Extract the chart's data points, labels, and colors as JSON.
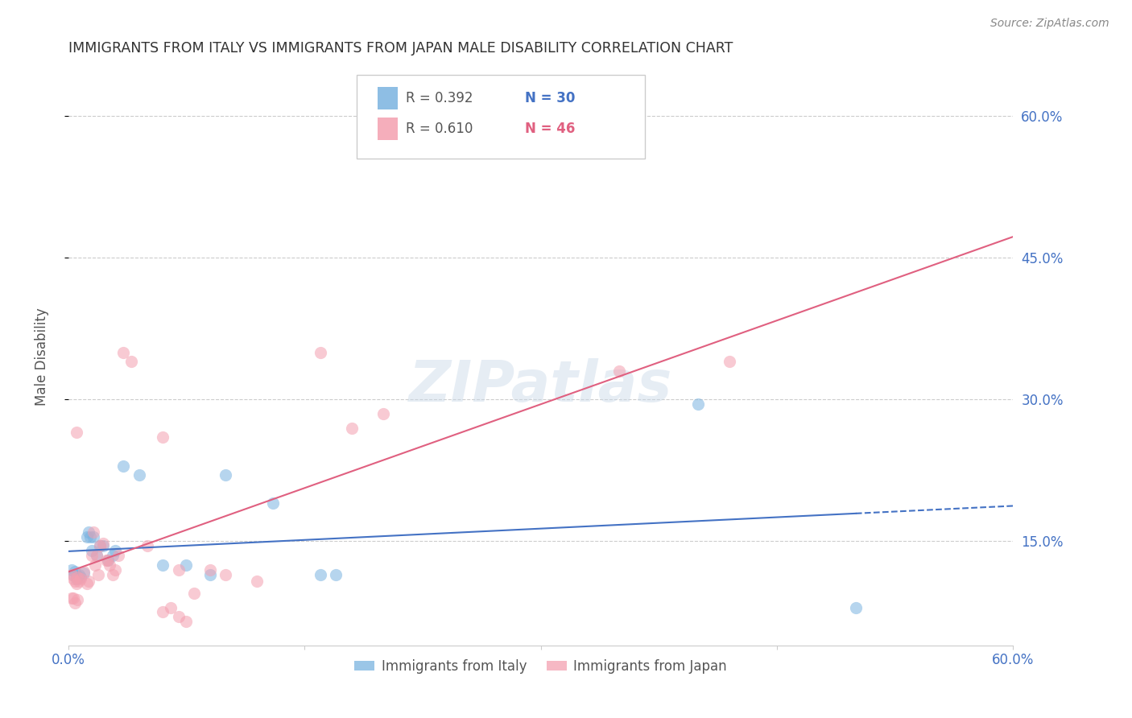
{
  "title": "IMMIGRANTS FROM ITALY VS IMMIGRANTS FROM JAPAN MALE DISABILITY CORRELATION CHART",
  "source": "Source: ZipAtlas.com",
  "ylabel": "Male Disability",
  "xlim": [
    0.0,
    0.6
  ],
  "ylim_plot": [
    0.04,
    0.65
  ],
  "xtick_vals": [
    0.0,
    0.15,
    0.3,
    0.45,
    0.6
  ],
  "xtick_labels": [
    "0.0%",
    "",
    "",
    "",
    "60.0%"
  ],
  "ytick_vals": [
    0.15,
    0.3,
    0.45,
    0.6
  ],
  "ytick_labels_right": [
    "15.0%",
    "30.0%",
    "45.0%",
    "60.0%"
  ],
  "title_color": "#333333",
  "source_color": "#888888",
  "axis_label_color": "#555555",
  "tick_label_color": "#4472c4",
  "grid_color": "#cccccc",
  "legend_r1": "R = 0.392",
  "legend_n1": "N = 30",
  "legend_r2": "R = 0.610",
  "legend_n2": "N = 46",
  "legend_n1_color": "#4472c4",
  "legend_n2_color": "#e06080",
  "legend_r_color": "#555555",
  "italy_color": "#7ab3e0",
  "japan_color": "#f4a0b0",
  "italy_line_color": "#4472c4",
  "japan_line_color": "#e06080",
  "watermark": "ZIPatlas",
  "italy_points": [
    [
      0.002,
      0.12
    ],
    [
      0.003,
      0.115
    ],
    [
      0.004,
      0.118
    ],
    [
      0.005,
      0.11
    ],
    [
      0.006,
      0.113
    ],
    [
      0.007,
      0.115
    ],
    [
      0.008,
      0.112
    ],
    [
      0.01,
      0.116
    ],
    [
      0.012,
      0.155
    ],
    [
      0.013,
      0.16
    ],
    [
      0.014,
      0.155
    ],
    [
      0.015,
      0.14
    ],
    [
      0.016,
      0.155
    ],
    [
      0.018,
      0.135
    ],
    [
      0.02,
      0.145
    ],
    [
      0.022,
      0.145
    ],
    [
      0.025,
      0.13
    ],
    [
      0.028,
      0.135
    ],
    [
      0.03,
      0.14
    ],
    [
      0.035,
      0.23
    ],
    [
      0.045,
      0.22
    ],
    [
      0.06,
      0.125
    ],
    [
      0.075,
      0.125
    ],
    [
      0.09,
      0.115
    ],
    [
      0.1,
      0.22
    ],
    [
      0.13,
      0.19
    ],
    [
      0.16,
      0.115
    ],
    [
      0.17,
      0.115
    ],
    [
      0.4,
      0.295
    ],
    [
      0.5,
      0.08
    ]
  ],
  "japan_points": [
    [
      0.002,
      0.115
    ],
    [
      0.003,
      0.11
    ],
    [
      0.004,
      0.108
    ],
    [
      0.005,
      0.105
    ],
    [
      0.006,
      0.112
    ],
    [
      0.007,
      0.108
    ],
    [
      0.008,
      0.11
    ],
    [
      0.01,
      0.118
    ],
    [
      0.012,
      0.105
    ],
    [
      0.013,
      0.108
    ],
    [
      0.015,
      0.135
    ],
    [
      0.016,
      0.16
    ],
    [
      0.017,
      0.125
    ],
    [
      0.018,
      0.135
    ],
    [
      0.019,
      0.115
    ],
    [
      0.02,
      0.145
    ],
    [
      0.022,
      0.148
    ],
    [
      0.024,
      0.13
    ],
    [
      0.025,
      0.13
    ],
    [
      0.026,
      0.125
    ],
    [
      0.028,
      0.115
    ],
    [
      0.03,
      0.12
    ],
    [
      0.032,
      0.135
    ],
    [
      0.035,
      0.35
    ],
    [
      0.04,
      0.34
    ],
    [
      0.05,
      0.145
    ],
    [
      0.06,
      0.26
    ],
    [
      0.07,
      0.12
    ],
    [
      0.08,
      0.095
    ],
    [
      0.09,
      0.12
    ],
    [
      0.005,
      0.265
    ],
    [
      0.1,
      0.115
    ],
    [
      0.12,
      0.108
    ],
    [
      0.16,
      0.35
    ],
    [
      0.18,
      0.27
    ],
    [
      0.2,
      0.285
    ],
    [
      0.35,
      0.33
    ],
    [
      0.42,
      0.34
    ],
    [
      0.002,
      0.09
    ],
    [
      0.003,
      0.09
    ],
    [
      0.004,
      0.085
    ],
    [
      0.006,
      0.088
    ],
    [
      0.06,
      0.075
    ],
    [
      0.065,
      0.08
    ],
    [
      0.07,
      0.07
    ],
    [
      0.075,
      0.065
    ]
  ],
  "italy_size": 120,
  "japan_size": 120,
  "italy_alpha": 0.55,
  "japan_alpha": 0.55
}
